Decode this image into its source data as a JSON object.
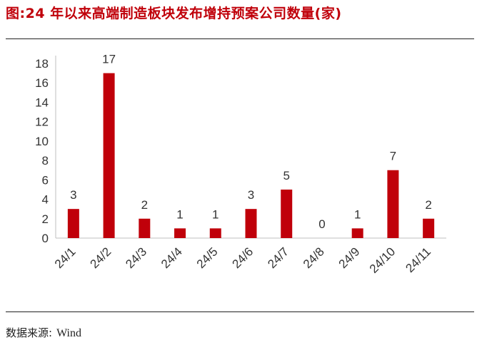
{
  "title": "图:24 年以来高端制造板块发布增持预案公司数量(家)",
  "source_label": "数据来源:",
  "source_value": "Wind",
  "chart_data": {
    "type": "bar",
    "categories": [
      "24/1",
      "24/2",
      "24/3",
      "24/4",
      "24/5",
      "24/6",
      "24/7",
      "24/8",
      "24/9",
      "24/10",
      "24/11"
    ],
    "values": [
      3,
      17,
      2,
      1,
      1,
      3,
      5,
      0,
      1,
      7,
      2
    ],
    "ylim": [
      0,
      18
    ],
    "yticks": [
      0,
      2,
      4,
      6,
      8,
      10,
      12,
      14,
      16,
      18
    ],
    "bar_color": "#c0000a",
    "grid": false,
    "data_labels": true
  }
}
